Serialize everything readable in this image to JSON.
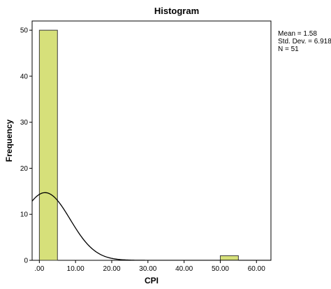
{
  "chart_data": {
    "type": "bar",
    "title": "Histogram",
    "xlabel": "CPI",
    "ylabel": "Frequency",
    "xlim": [
      -2,
      64
    ],
    "ylim": [
      0,
      52
    ],
    "x_ticks": [
      0,
      10,
      20,
      30,
      40,
      50,
      60
    ],
    "x_tick_labels": [
      ".00",
      "10.00",
      "20.00",
      "30.00",
      "40.00",
      "50.00",
      "60.00"
    ],
    "y_ticks": [
      0,
      10,
      20,
      30,
      40,
      50
    ],
    "y_tick_labels": [
      "0",
      "10",
      "20",
      "30",
      "40",
      "50"
    ],
    "bins": [
      {
        "start": 0,
        "end": 5,
        "count": 50
      },
      {
        "start": 50,
        "end": 55,
        "count": 1
      }
    ],
    "normal_curve": {
      "mean": 1.58,
      "std_dev": 6.918,
      "n": 51,
      "bin_width": 5
    },
    "stats": {
      "mean_label": "Mean = 1.58",
      "std_label": "Std. Dev. = 6.918",
      "n_label": "N = 51"
    },
    "colors": {
      "bar_fill": "#d6e07a",
      "bar_stroke": "#3c3c3c",
      "curve": "#000000",
      "axis": "#000000"
    },
    "grid": false
  }
}
